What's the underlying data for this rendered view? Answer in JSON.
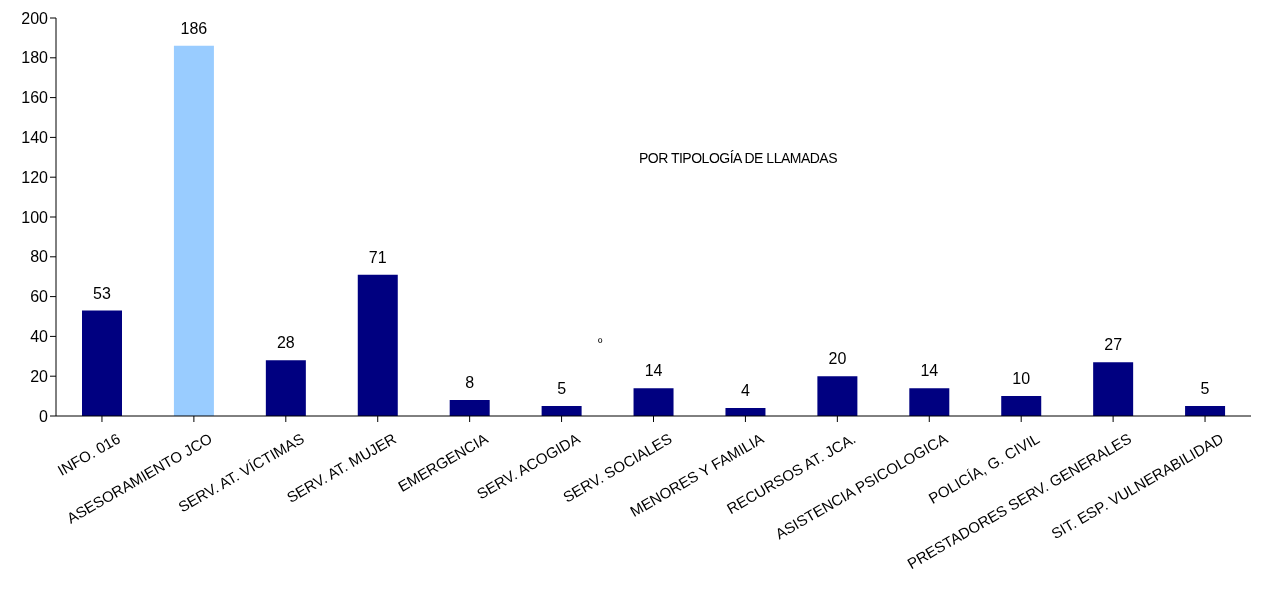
{
  "chart_data": {
    "type": "bar",
    "title": "POR TIPOLOGÍA DE LLAMADAS",
    "categories": [
      "INFO. 016",
      "ASESORAMIENTO JCO",
      "SERV. AT. VÍCTIMAS",
      "SERV. AT. MUJER",
      "EMERGENCIA",
      "SERV. ACOGIDA",
      "SERV. SOCIALES",
      "MENORES Y FAMILIA",
      "RECURSOS AT. JCA.",
      "ASISTENCIA PSICOLOGICA",
      "POLICÍA, G. CIVIL",
      "PRESTADORES SERV. GENERALES",
      "SIT. ESP. VULNERABILIDAD"
    ],
    "values": [
      53,
      186,
      28,
      71,
      8,
      5,
      14,
      4,
      20,
      14,
      10,
      27,
      5
    ],
    "colors": [
      "#000080",
      "#99ccff",
      "#000080",
      "#000080",
      "#000080",
      "#000080",
      "#000080",
      "#000080",
      "#000080",
      "#000080",
      "#000080",
      "#000080",
      "#000080"
    ],
    "ylim": [
      0,
      200
    ],
    "yticks": [
      0,
      20,
      40,
      60,
      80,
      100,
      120,
      140,
      160,
      180,
      200
    ],
    "data_labels": true,
    "grid": false,
    "legend": false,
    "annotations": [
      "º"
    ]
  }
}
